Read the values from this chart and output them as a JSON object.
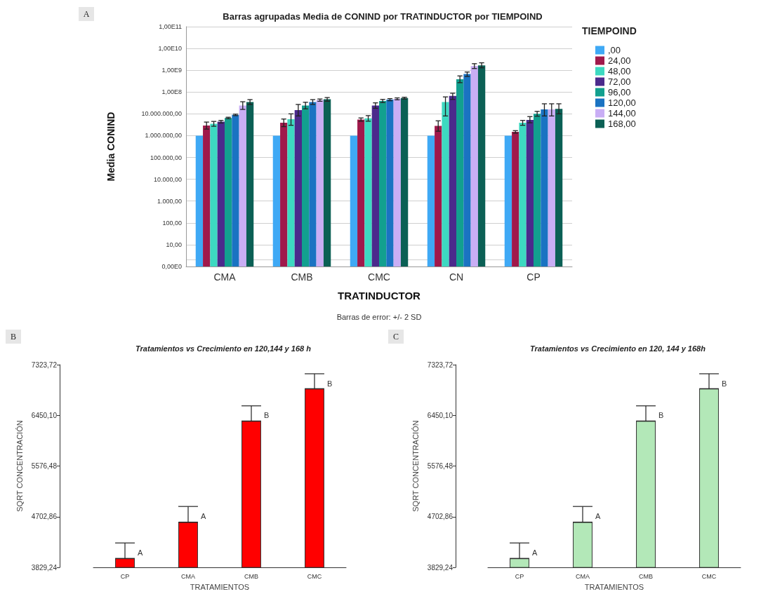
{
  "chart_data": [
    {
      "type": "bar",
      "title": "Barras agrupadas Media de CONIND por TRATINDUCTOR por TIEMPOIND",
      "xlabel": "TRATINDUCTOR",
      "ylabel": "Media CONIND",
      "legend_title": "TIEMPOIND",
      "annotations": [
        "A",
        "Barras de error: +/- 2 SD"
      ],
      "categories": [
        "CMA",
        "CMB",
        "CMC",
        "CN",
        "CP"
      ],
      "log": "y",
      "ylim": [
        1,
        100000000000
      ],
      "yticks": [
        {
          "value": 1,
          "label": "0,00E0"
        },
        {
          "value": 2,
          "label": null
        },
        {
          "value": 10,
          "label": "10,00"
        },
        {
          "value": 100,
          "label": "100,00"
        },
        {
          "value": 1000,
          "label": "1.000,00"
        },
        {
          "value": 10000,
          "label": "10.000,00"
        },
        {
          "value": 100000,
          "label": "100.000,00"
        },
        {
          "value": 1000000,
          "label": "1.000.000,00"
        },
        {
          "value": 10000000,
          "label": "10.000.000,00"
        },
        {
          "value": 100000000,
          "label": "1,00E8"
        },
        {
          "value": 1000000000,
          "label": "1,00E9"
        },
        {
          "value": 10000000000,
          "label": "1,00E10"
        },
        {
          "value": 100000000000,
          "label": "1,00E11"
        }
      ],
      "grid": "y",
      "legend": "right",
      "series": [
        {
          "name": ",00",
          "color": "#3fa9f5",
          "values": [
            1000000,
            1000000,
            1000000,
            1000000,
            1000000
          ]
        },
        {
          "name": "24,00",
          "color": "#a0194b",
          "values": [
            2900000,
            3900000,
            5500000,
            2800000,
            1500000
          ],
          "errors": [
            [
              2000000,
              4200000
            ],
            [
              2600000,
              5800000
            ],
            [
              4600000,
              6500000
            ],
            [
              1600000,
              4800000
            ],
            [
              1300000,
              1700000
            ]
          ]
        },
        {
          "name": "48,00",
          "color": "#3dd9c1",
          "values": [
            3500000,
            5700000,
            6200000,
            35000000,
            3900000
          ],
          "errors": [
            [
              2700000,
              4500000
            ],
            [
              3000000,
              10000000
            ],
            [
              4600000,
              8300000
            ],
            [
              8000000,
              60000000
            ],
            [
              3000000,
              5000000
            ]
          ]
        },
        {
          "name": "72,00",
          "color": "#4b2a8c",
          "values": [
            4400000,
            15000000,
            24000000,
            67000000,
            5300000
          ],
          "errors": [
            [
              3800000,
              5000000
            ],
            [
              8000000,
              27000000
            ],
            [
              18000000,
              32000000
            ],
            [
              46000000,
              88000000
            ],
            [
              3900000,
              7500000
            ]
          ]
        },
        {
          "name": "96,00",
          "color": "#12a08f",
          "values": [
            6500000,
            24000000,
            39000000,
            390000000,
            10000000
          ],
          "errors": [
            [
              6000000,
              7000000
            ],
            [
              17000000,
              34000000
            ],
            [
              33000000,
              46000000
            ],
            [
              270000000,
              550000000
            ],
            [
              7800000,
              13000000
            ]
          ]
        },
        {
          "name": "120,00",
          "color": "#1a73c2",
          "values": [
            9000000,
            35000000,
            45000000,
            670000000,
            16000000
          ],
          "errors": [
            [
              8300000,
              9700000
            ],
            [
              27000000,
              45000000
            ],
            [
              40000000,
              50000000
            ],
            [
              520000000,
              830000000
            ],
            [
              8000000,
              29000000
            ]
          ]
        },
        {
          "name": "144,00",
          "color": "#c9aef5",
          "values": [
            24000000,
            43000000,
            49000000,
            1550000000,
            16000000
          ],
          "errors": [
            [
              16000000,
              36000000
            ],
            [
              38000000,
              48000000
            ],
            [
              44000000,
              54000000
            ],
            [
              1200000000,
              2000000000
            ],
            [
              8000000,
              29000000
            ]
          ]
        },
        {
          "name": "168,00",
          "color": "#0b6055",
          "values": [
            35000000,
            47000000,
            53000000,
            1660000000,
            17000000
          ],
          "errors": [
            [
              27000000,
              45000000
            ],
            [
              38000000,
              56000000
            ],
            [
              48000000,
              58000000
            ],
            [
              1300000000,
              2200000000
            ],
            [
              10000000,
              29000000
            ]
          ]
        }
      ]
    },
    {
      "type": "bar",
      "title": "Tratamientos vs Crecimiento en 120,144 y 168 h",
      "xlabel": "TRATAMIENTOS",
      "ylabel": "SQRT CONCENTRACIÓN",
      "annotations": [
        "B",
        {
          "text": "A",
          "x": "CP",
          "y": 4082
        },
        {
          "text": "A",
          "x": "CMA",
          "y": 4707
        },
        {
          "text": "B",
          "x": "CMB",
          "y": 6454
        },
        {
          "text": "B",
          "x": "CMC",
          "y": 7003
        }
      ],
      "categories": [
        "CP",
        "CMA",
        "CMB",
        "CMC"
      ],
      "ylim": [
        3829.24,
        7323.72
      ],
      "yticks": [
        {
          "value": 3829.24,
          "label": "3829,24"
        },
        {
          "value": 4702.86,
          "label": "4702,86"
        },
        {
          "value": 5576.48,
          "label": "5576,48"
        },
        {
          "value": 6450.1,
          "label": "6450,10"
        },
        {
          "value": 7323.72,
          "label": "7323,72"
        }
      ],
      "series": [
        {
          "color": "#ff0000",
          "values": [
            3985,
            4610,
            6353,
            6910
          ],
          "errors": [
            [
              3985,
              4251
            ],
            [
              4610,
              4880
            ],
            [
              6353,
              6614
            ],
            [
              6910,
              7167
            ]
          ]
        }
      ]
    },
    {
      "type": "bar",
      "title": "Tratamientos vs Crecimiento en 120, 144 y 168h",
      "xlabel": "TRATAMIENTOS",
      "ylabel": "SQRT CONCENTRACIÓN",
      "annotations": [
        "C",
        {
          "text": "A",
          "x": "CP",
          "y": 4082
        },
        {
          "text": "A",
          "x": "CMA",
          "y": 4707
        },
        {
          "text": "B",
          "x": "CMB",
          "y": 6454
        },
        {
          "text": "B",
          "x": "CMC",
          "y": 7003
        }
      ],
      "categories": [
        "CP",
        "CMA",
        "CMB",
        "CMC"
      ],
      "ylim": [
        3829.24,
        7323.72
      ],
      "yticks": [
        {
          "value": 3829.24,
          "label": "3829,24"
        },
        {
          "value": 4702.86,
          "label": "4702,86"
        },
        {
          "value": 5576.48,
          "label": "5576,48"
        },
        {
          "value": 6450.1,
          "label": "6450,10"
        },
        {
          "value": 7323.72,
          "label": "7323,72"
        }
      ],
      "series": [
        {
          "color": "#b3e8b8",
          "values": [
            3985,
            4610,
            6353,
            6910
          ],
          "errors": [
            [
              3985,
              4251
            ],
            [
              4610,
              4880
            ],
            [
              6353,
              6614
            ],
            [
              6910,
              7167
            ]
          ]
        }
      ]
    }
  ]
}
